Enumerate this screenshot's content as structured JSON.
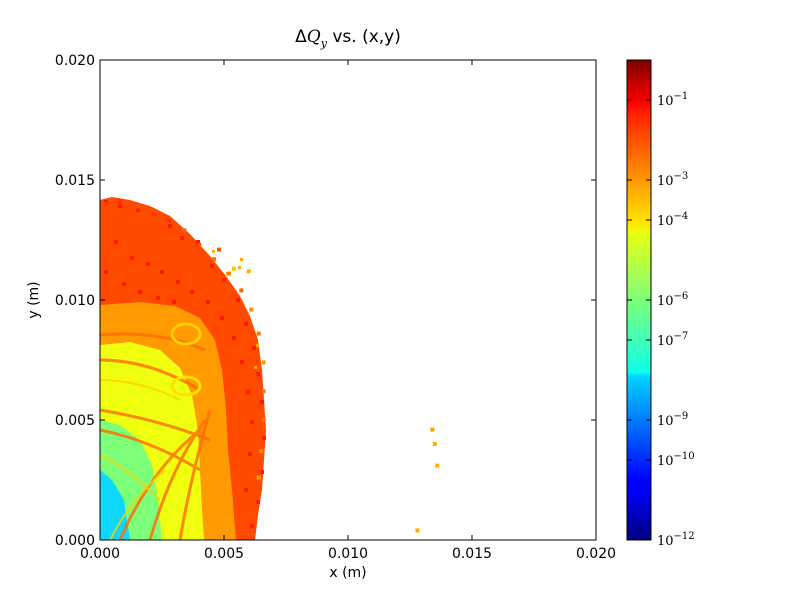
{
  "chart_data": {
    "type": "scatter",
    "title_prefix": "Δ",
    "title_var": "Q",
    "title_sub": "y",
    "title_suffix": " vs. (x,y)",
    "xlabel": "x (m)",
    "ylabel": "y (m)",
    "xlim": [
      0.0,
      0.02
    ],
    "ylim": [
      0.0,
      0.02
    ],
    "xticks": [
      "0.000",
      "0.005",
      "0.010",
      "0.015",
      "0.020"
    ],
    "yticks": [
      "0.000",
      "0.005",
      "0.010",
      "0.015",
      "0.020"
    ],
    "xtick_values": [
      0.0,
      0.005,
      0.01,
      0.015,
      0.02
    ],
    "ytick_values": [
      0.0,
      0.005,
      0.01,
      0.015,
      0.02
    ],
    "grid": false,
    "colorbar": {
      "scale": "log",
      "colormap": "jet",
      "range_exp": [
        -12,
        0
      ],
      "tick_labels": [
        {
          "base": "10",
          "exp": "−1",
          "value_exp": -1
        },
        {
          "base": "10",
          "exp": "−3",
          "value_exp": -3
        },
        {
          "base": "10",
          "exp": "−4",
          "value_exp": -4
        },
        {
          "base": "10",
          "exp": "−6",
          "value_exp": -6
        },
        {
          "base": "10",
          "exp": "−7",
          "value_exp": -7
        },
        {
          "base": "10",
          "exp": "−9",
          "value_exp": -9
        },
        {
          "base": "10",
          "exp": "−10",
          "value_exp": -10
        },
        {
          "base": "10",
          "exp": "−12",
          "value_exp": -12
        }
      ]
    },
    "series": [
      {
        "points_log10": [
          [
            0.0002,
            0.014,
            -2.2
          ],
          [
            0.0008,
            0.0141,
            -2.0
          ],
          [
            0.0015,
            0.0139,
            -2.5
          ],
          [
            0.0022,
            0.0136,
            -2.3
          ],
          [
            0.0028,
            0.0133,
            -2.1
          ],
          [
            0.0034,
            0.0129,
            -2.6
          ],
          [
            0.004,
            0.0123,
            -2.4
          ],
          [
            0.0046,
            0.0117,
            -2.8
          ],
          [
            0.0052,
            0.0111,
            -3.0
          ],
          [
            0.0057,
            0.0104,
            -2.7
          ],
          [
            0.0061,
            0.0096,
            -3.2
          ],
          [
            0.0064,
            0.0086,
            -2.9
          ],
          [
            0.0066,
            0.0074,
            -3.3
          ],
          [
            0.0066,
            0.0062,
            -3.0
          ],
          [
            0.0066,
            0.005,
            -2.8
          ],
          [
            0.0065,
            0.0037,
            -3.1
          ],
          [
            0.0064,
            0.0026,
            -3.4
          ],
          [
            0.0054,
            0.0113,
            -3.8
          ],
          [
            0.006,
            0.0112,
            -3.6
          ],
          [
            0.0048,
            0.0121,
            -2.5
          ],
          [
            0.0134,
            0.0046,
            -3.4
          ],
          [
            0.0135,
            0.004,
            -3.5
          ],
          [
            0.0136,
            0.0031,
            -3.6
          ],
          [
            0.0128,
            0.0004,
            -3.5
          ]
        ]
      }
    ]
  }
}
